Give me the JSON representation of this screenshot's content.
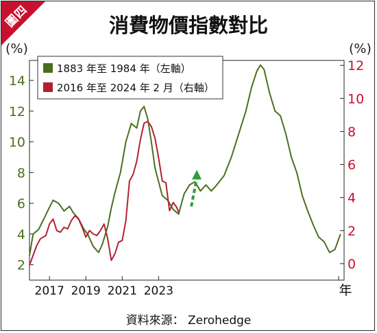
{
  "badge": "圖四",
  "title": "消費物價指數對比",
  "left_unit": "(%)",
  "right_unit": "(%)",
  "source": "資料來源： Zerohedge",
  "x_unit": "年",
  "colors": {
    "green": "#4a6e1f",
    "red": "#b3202f",
    "arrow": "#2e9e3a",
    "left_axis": "#4a6e1f",
    "right_axis": "#c8102e",
    "badge": "#c8102e"
  },
  "chart_data": {
    "type": "line",
    "x_ticks": [
      "2017",
      "2019",
      "2021",
      "2023"
    ],
    "x_tick_positions": [
      2017,
      2019,
      2021,
      2023
    ],
    "x_range": [
      2015.9,
      2033.2
    ],
    "left_axis": {
      "ticks": [
        2,
        4,
        6,
        8,
        10,
        12,
        14
      ],
      "range": [
        1.0,
        15.3
      ]
    },
    "right_axis": {
      "ticks": [
        0,
        2,
        4,
        6,
        8,
        10,
        12
      ],
      "range": [
        -1.0,
        12.3
      ]
    },
    "legend": [
      "1883 年至 1984 年（左軸）",
      "2016 年至 2024 年 2 月（右軸）"
    ],
    "legend_position": "top-left",
    "series": [
      {
        "name": "1883 年至 1984 年（左軸）",
        "axis": "left",
        "color": "green",
        "x": [
          2015.9,
          2016.1,
          2016.4,
          2016.7,
          2016.9,
          2017.2,
          2017.5,
          2017.8,
          2018.1,
          2018.3,
          2018.6,
          2018.9,
          2019.1,
          2019.4,
          2019.7,
          2019.9,
          2020.2,
          2020.4,
          2020.6,
          2020.9,
          2021.2,
          2021.5,
          2021.8,
          2022.0,
          2022.2,
          2022.4,
          2022.6,
          2022.8,
          2023.0,
          2023.2,
          2023.5,
          2023.8,
          2024.1,
          2024.4,
          2024.7,
          2025.0,
          2025.3,
          2025.6,
          2025.9,
          2026.2,
          2026.6,
          2027.0,
          2027.4,
          2027.8,
          2028.1,
          2028.4,
          2028.6,
          2028.8,
          2029.1,
          2029.4,
          2029.7,
          2030.0,
          2030.3,
          2030.6,
          2030.9,
          2031.2,
          2031.5,
          2031.8,
          2032.1,
          2032.4,
          2032.7,
          2033.0
        ],
        "y": [
          2.6,
          4.0,
          4.3,
          5.0,
          5.5,
          6.2,
          6.0,
          5.5,
          5.8,
          5.4,
          5.0,
          4.3,
          4.0,
          3.2,
          2.8,
          3.3,
          4.5,
          5.7,
          6.7,
          8.0,
          10.0,
          11.2,
          10.9,
          12.0,
          12.3,
          11.5,
          10.0,
          8.3,
          7.4,
          6.5,
          6.2,
          5.6,
          5.3,
          6.6,
          7.2,
          7.4,
          6.8,
          7.2,
          6.8,
          7.2,
          7.8,
          9.0,
          10.5,
          12.0,
          13.5,
          14.6,
          15.0,
          14.7,
          13.2,
          12.0,
          11.7,
          10.5,
          9.0,
          8.0,
          6.5,
          5.5,
          4.6,
          3.8,
          3.5,
          2.8,
          3.0,
          4.0
        ]
      },
      {
        "name": "2016 年至 2024 年 2 月（右軸）",
        "axis": "right",
        "color": "red",
        "x": [
          2015.9,
          2016.1,
          2016.3,
          2016.5,
          2016.8,
          2017.0,
          2017.2,
          2017.4,
          2017.6,
          2017.8,
          2018.0,
          2018.2,
          2018.4,
          2018.6,
          2018.8,
          2019.0,
          2019.2,
          2019.4,
          2019.6,
          2019.8,
          2020.0,
          2020.2,
          2020.4,
          2020.6,
          2020.8,
          2021.0,
          2021.2,
          2021.4,
          2021.6,
          2021.8,
          2022.0,
          2022.2,
          2022.4,
          2022.6,
          2022.8,
          2023.0,
          2023.2,
          2023.4,
          2023.6,
          2023.8,
          2024.0,
          2024.1
        ],
        "y": [
          -0.1,
          0.5,
          1.1,
          1.5,
          1.7,
          2.4,
          2.7,
          2.0,
          1.9,
          2.2,
          2.1,
          2.6,
          2.9,
          2.7,
          2.2,
          1.6,
          2.0,
          1.8,
          1.7,
          2.0,
          2.4,
          1.5,
          0.2,
          0.6,
          1.3,
          1.4,
          2.6,
          5.0,
          5.4,
          6.2,
          7.5,
          8.5,
          8.6,
          8.3,
          7.6,
          6.4,
          5.0,
          4.9,
          3.2,
          3.7,
          3.4,
          3.1
        ]
      }
    ],
    "annotation": {
      "type": "dashed-arrow",
      "color": "arrow",
      "from": {
        "x": 2024.8,
        "y_left": 5.8
      },
      "to": {
        "x": 2025.1,
        "y_left": 8.0
      }
    }
  }
}
